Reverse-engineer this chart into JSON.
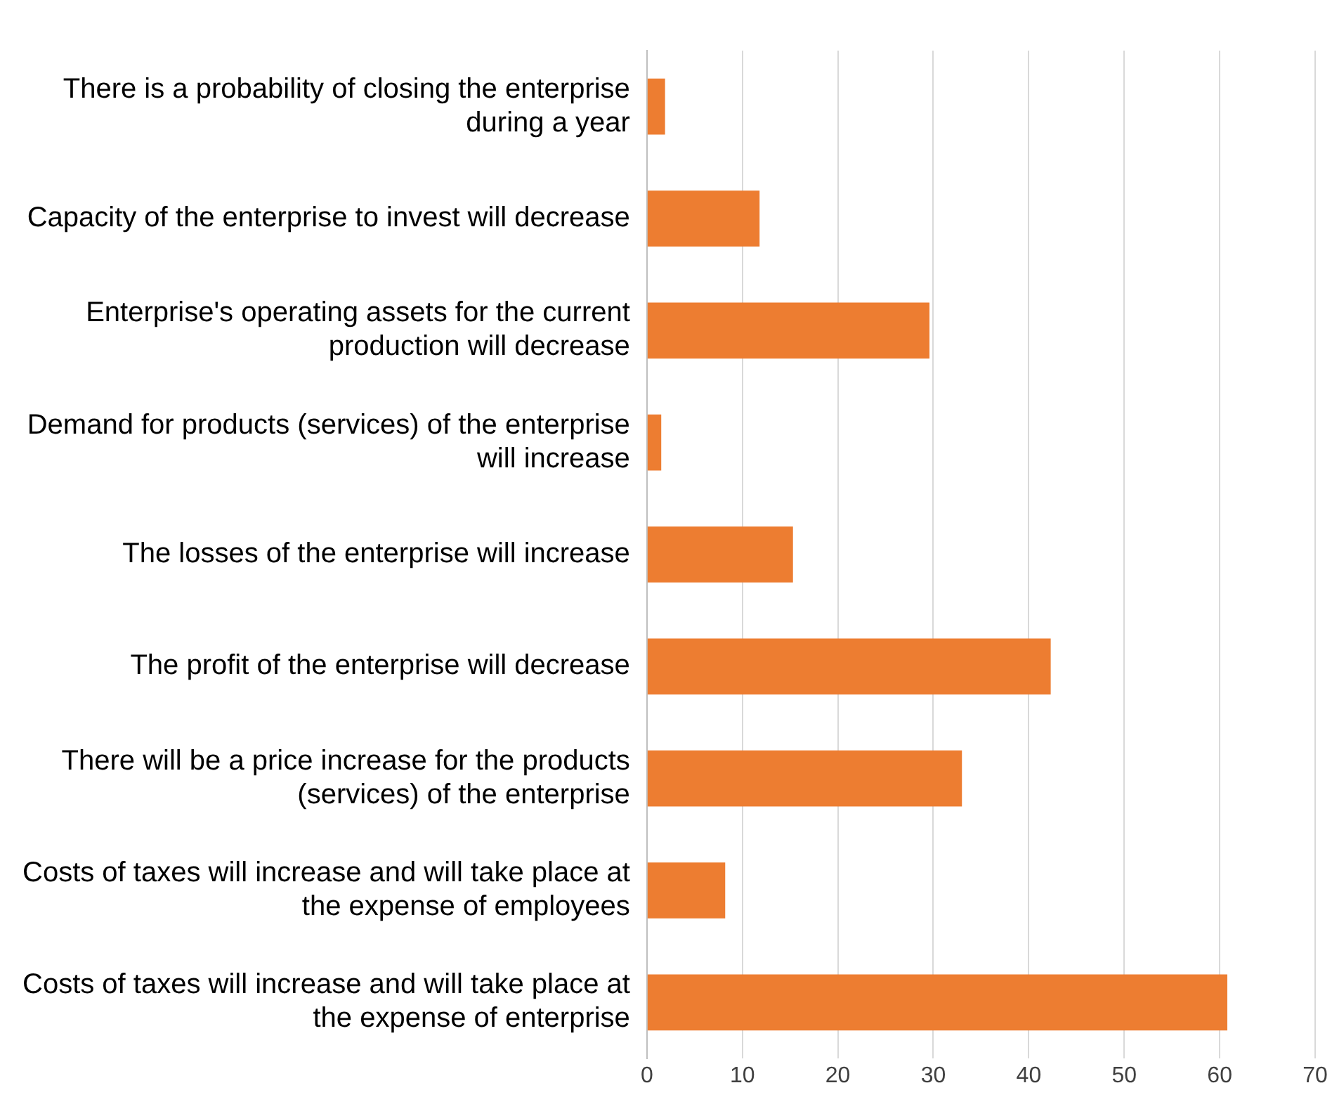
{
  "chart_data": {
    "type": "bar",
    "orientation": "horizontal",
    "categories": [
      "There is a probability of closing the enterprise during a year",
      "Capacity of the enterprise to invest will decrease",
      "Enterprise's operating assets for the current production will decrease",
      "Demand for products (services) of the enterprise will increase",
      "The losses of the enterprise will increase",
      "The profit of the enterprise will decrease",
      "There will be a price increase for the products (services) of the enterprise",
      "Costs of taxes will increase and will take place at the expense of employees",
      "Costs of taxes will increase and will take place at the expense of enterprise"
    ],
    "values": [
      1.9,
      11.8,
      29.6,
      1.5,
      15.3,
      42.3,
      33.0,
      8.2,
      60.8
    ],
    "color": "#ed7d31",
    "xlim": [
      0,
      70
    ],
    "xticks": [
      0,
      10,
      20,
      30,
      40,
      50,
      60,
      70
    ],
    "grid": "x",
    "legend": false
  }
}
